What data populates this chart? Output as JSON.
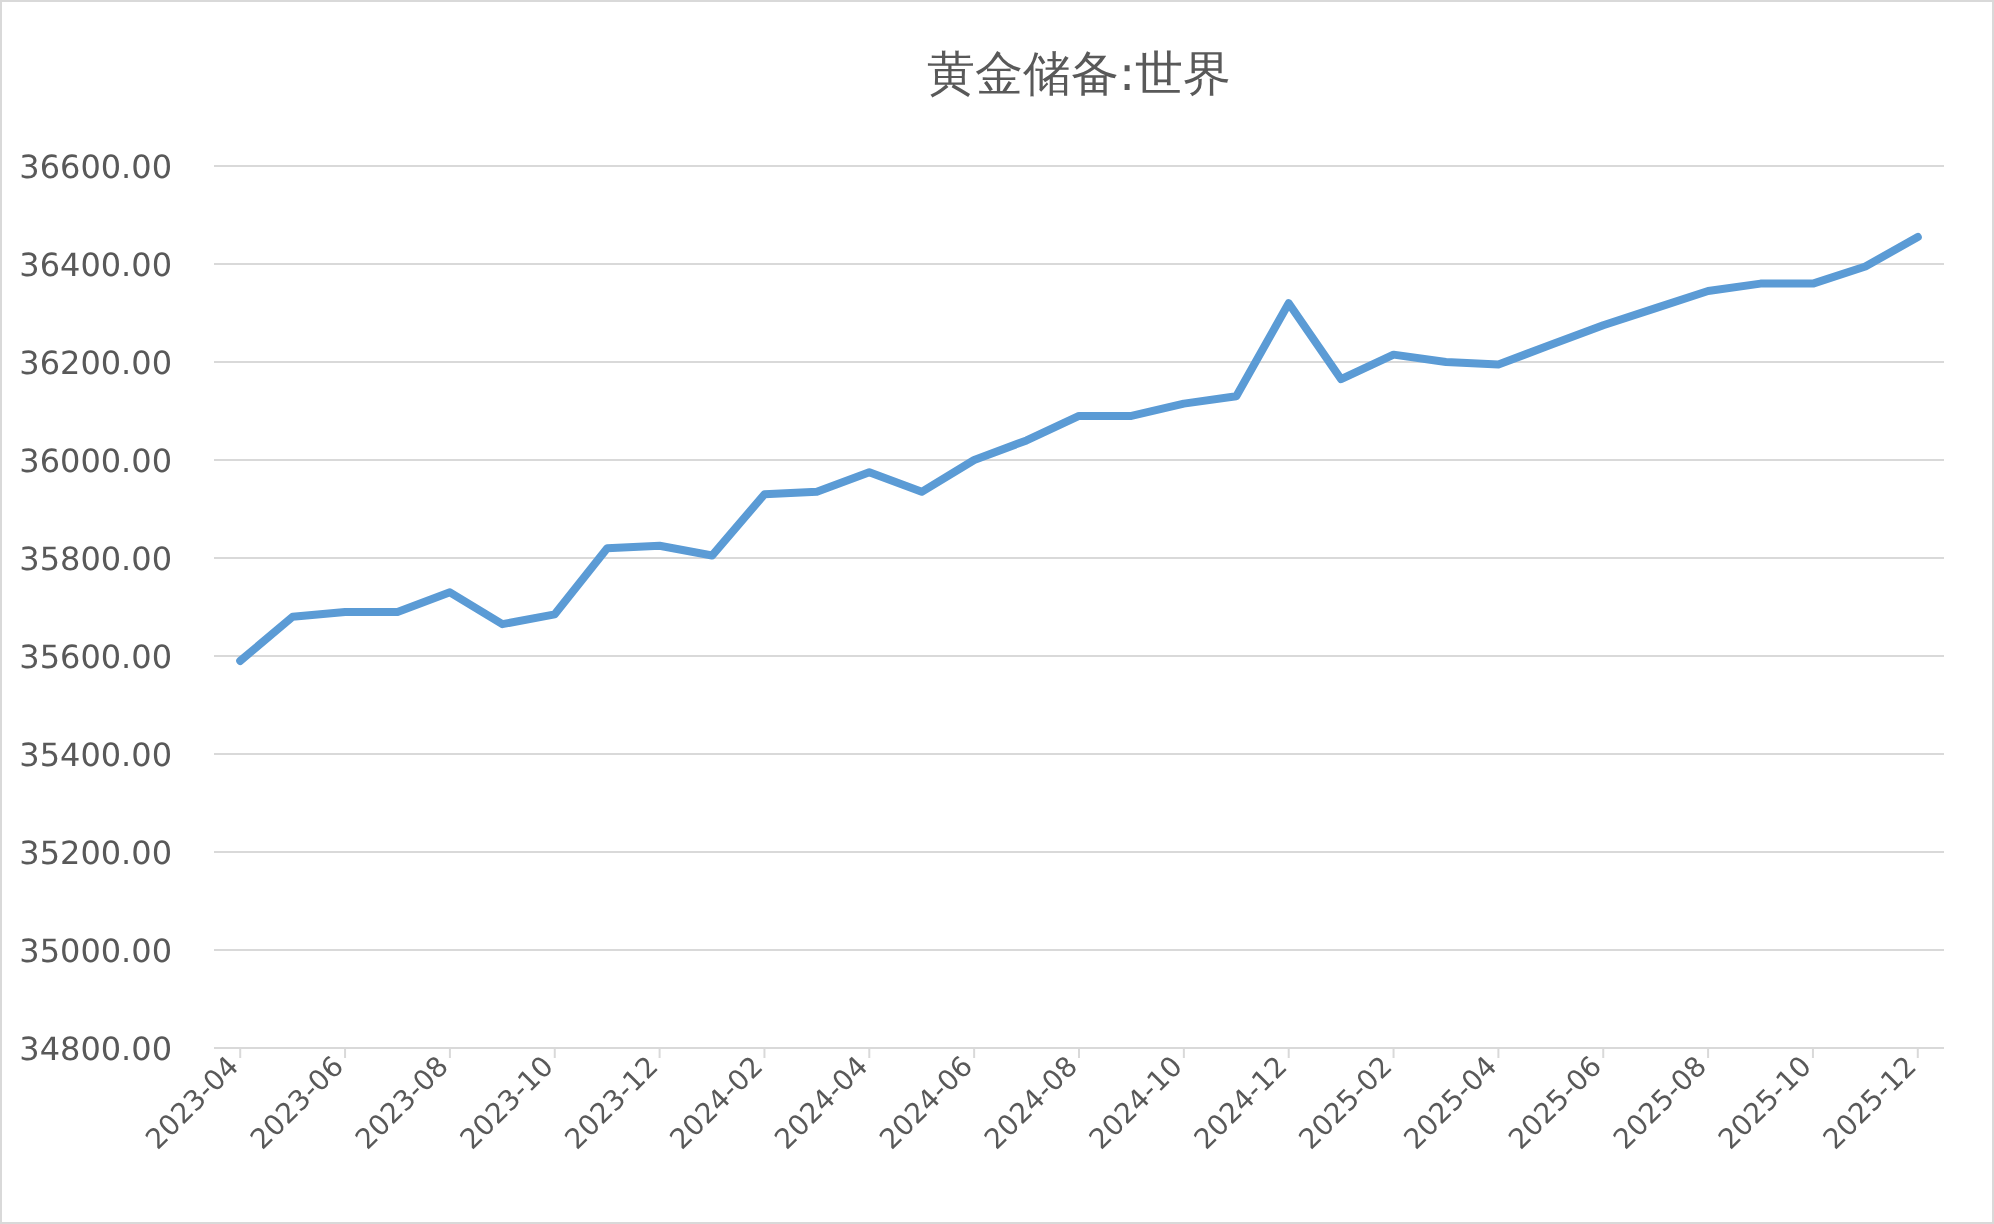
{
  "chart_data": {
    "type": "line",
    "title": "黄金储备:世界",
    "categories": [
      "2023-04",
      null,
      "2023-06",
      null,
      "2023-08",
      null,
      "2023-10",
      null,
      "2023-12",
      null,
      "2024-02",
      null,
      "2024-04",
      null,
      "2024-06",
      null,
      "2024-08",
      null,
      "2024-10",
      null,
      "2024-12",
      null,
      "2025-02",
      null,
      "2025-04",
      null,
      "2025-06",
      null,
      "2025-08",
      null,
      "2025-10",
      null,
      "2025-12"
    ],
    "series": [
      {
        "color": "#5b9bd5",
        "values": [
          35590,
          35680,
          35690,
          35690,
          35730,
          35665,
          35685,
          35820,
          35825,
          35805,
          35930,
          35935,
          35975,
          35935,
          36000,
          36040,
          36090,
          36090,
          36115,
          36130,
          36320,
          36165,
          36215,
          36200,
          36195,
          36235,
          36275,
          36310,
          36345,
          36360,
          36360,
          36395,
          36455
        ]
      }
    ],
    "ylim": [
      34800,
      36600
    ],
    "yticks": [
      {
        "value": 34800,
        "label": "34800.00"
      },
      {
        "value": 35000,
        "label": "35000.00"
      },
      {
        "value": 35200,
        "label": "35200.00"
      },
      {
        "value": 35400,
        "label": "35400.00"
      },
      {
        "value": 35600,
        "label": "35600.00"
      },
      {
        "value": 35800,
        "label": "35800.00"
      },
      {
        "value": 36000,
        "label": "36000.00"
      },
      {
        "value": 36200,
        "label": "36200.00"
      },
      {
        "value": 36400,
        "label": "36400.00"
      },
      {
        "value": 36600,
        "label": "36600.00"
      }
    ],
    "grid": "y",
    "marker": "none",
    "line_style": "solid"
  }
}
